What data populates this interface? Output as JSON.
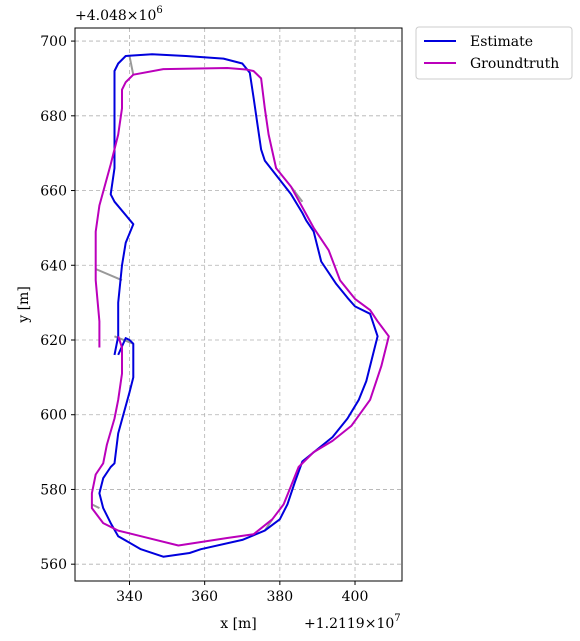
{
  "chart_data": {
    "type": "line",
    "xlabel": "x [m]",
    "ylabel": "y [m]",
    "x_offset_label": "+1.2119×10",
    "x_offset_exp": "7",
    "y_offset_label": "+4.048×10",
    "y_offset_exp": "6",
    "xlim": [
      325.5,
      412.5
    ],
    "ylim": [
      555.5,
      703.5
    ],
    "x_ticks": [
      340,
      360,
      380,
      400
    ],
    "y_ticks": [
      560,
      580,
      600,
      620,
      640,
      660,
      680,
      700
    ],
    "grid": true,
    "legend_position": "outside-top-right",
    "series": [
      {
        "name": "Estimate",
        "color": "#0000dd",
        "points": [
          [
            336,
            616
          ],
          [
            337,
            621
          ],
          [
            337,
            630
          ],
          [
            338,
            640
          ],
          [
            339,
            646
          ],
          [
            341,
            651
          ],
          [
            336,
            657
          ],
          [
            335,
            659
          ],
          [
            336,
            666
          ],
          [
            336,
            675
          ],
          [
            336,
            683
          ],
          [
            336,
            692
          ],
          [
            337,
            694
          ],
          [
            339,
            696
          ],
          [
            346,
            696.5
          ],
          [
            355,
            696
          ],
          [
            365,
            695.3
          ],
          [
            370,
            694
          ],
          [
            372,
            691.5
          ],
          [
            373,
            685
          ],
          [
            374,
            678
          ],
          [
            375,
            671
          ],
          [
            376,
            668
          ],
          [
            383,
            659
          ],
          [
            386,
            654
          ],
          [
            387,
            652
          ],
          [
            389,
            649
          ],
          [
            391,
            641
          ],
          [
            395,
            635
          ],
          [
            398,
            631.3
          ],
          [
            400,
            629
          ],
          [
            404,
            627
          ],
          [
            406,
            621
          ],
          [
            405,
            617
          ],
          [
            403,
            609
          ],
          [
            401,
            604
          ],
          [
            398,
            599
          ],
          [
            394,
            594
          ],
          [
            386,
            587.5
          ],
          [
            384,
            582
          ],
          [
            382,
            576
          ],
          [
            380,
            572
          ],
          [
            376,
            569
          ],
          [
            370,
            566.5
          ],
          [
            359,
            564
          ],
          [
            356,
            563
          ],
          [
            349,
            562
          ],
          [
            343,
            564
          ],
          [
            337,
            567.5
          ],
          [
            335,
            571
          ],
          [
            333,
            575
          ],
          [
            332,
            579
          ],
          [
            333,
            583
          ],
          [
            335,
            586
          ],
          [
            336,
            587
          ],
          [
            337,
            595
          ],
          [
            340,
            606
          ],
          [
            341,
            610
          ],
          [
            341,
            619
          ],
          [
            340,
            620
          ],
          [
            339,
            620.5
          ],
          [
            337,
            616
          ]
        ]
      },
      {
        "name": "Groundtruth",
        "color": "#bb00bb",
        "points": [
          [
            332,
            618
          ],
          [
            332,
            625
          ],
          [
            331,
            636
          ],
          [
            331,
            649
          ],
          [
            332,
            656
          ],
          [
            335,
            667
          ],
          [
            337,
            675
          ],
          [
            338,
            682
          ],
          [
            338,
            687
          ],
          [
            339,
            689
          ],
          [
            341,
            691
          ],
          [
            349,
            692.5
          ],
          [
            366,
            692.8
          ],
          [
            371,
            692.4
          ],
          [
            373,
            692
          ],
          [
            375,
            690
          ],
          [
            376,
            682
          ],
          [
            377,
            675
          ],
          [
            379,
            666
          ],
          [
            383,
            661
          ],
          [
            389,
            650
          ],
          [
            393,
            644
          ],
          [
            396,
            636
          ],
          [
            400,
            631
          ],
          [
            404,
            628
          ],
          [
            406,
            625
          ],
          [
            409,
            621
          ],
          [
            407,
            613
          ],
          [
            404,
            604
          ],
          [
            399,
            597
          ],
          [
            394,
            593
          ],
          [
            389,
            590
          ],
          [
            385,
            586
          ],
          [
            383,
            581
          ],
          [
            381,
            576
          ],
          [
            378,
            572
          ],
          [
            373,
            568
          ],
          [
            366,
            567
          ],
          [
            353,
            565
          ],
          [
            343,
            567.5
          ],
          [
            337,
            569
          ],
          [
            333,
            571
          ],
          [
            330,
            575
          ],
          [
            330,
            579
          ],
          [
            331,
            584
          ],
          [
            333,
            587
          ],
          [
            334,
            592
          ],
          [
            336,
            599
          ],
          [
            337,
            604
          ],
          [
            338,
            611
          ],
          [
            338,
            618
          ],
          [
            337,
            621
          ]
        ]
      }
    ],
    "correspondences": [
      [
        [
          340,
          696
        ],
        [
          341,
          691
        ]
      ],
      [
        [
          336,
          621
        ],
        [
          341,
          619
        ]
      ],
      [
        [
          338,
          636
        ],
        [
          331,
          639
        ]
      ],
      [
        [
          332,
          575
        ],
        [
          330,
          576
        ]
      ],
      [
        [
          376,
          569
        ],
        [
          378,
          572
        ]
      ],
      [
        [
          386,
          657
        ],
        [
          383,
          661
        ]
      ]
    ],
    "correspondence_color": "#999999"
  }
}
